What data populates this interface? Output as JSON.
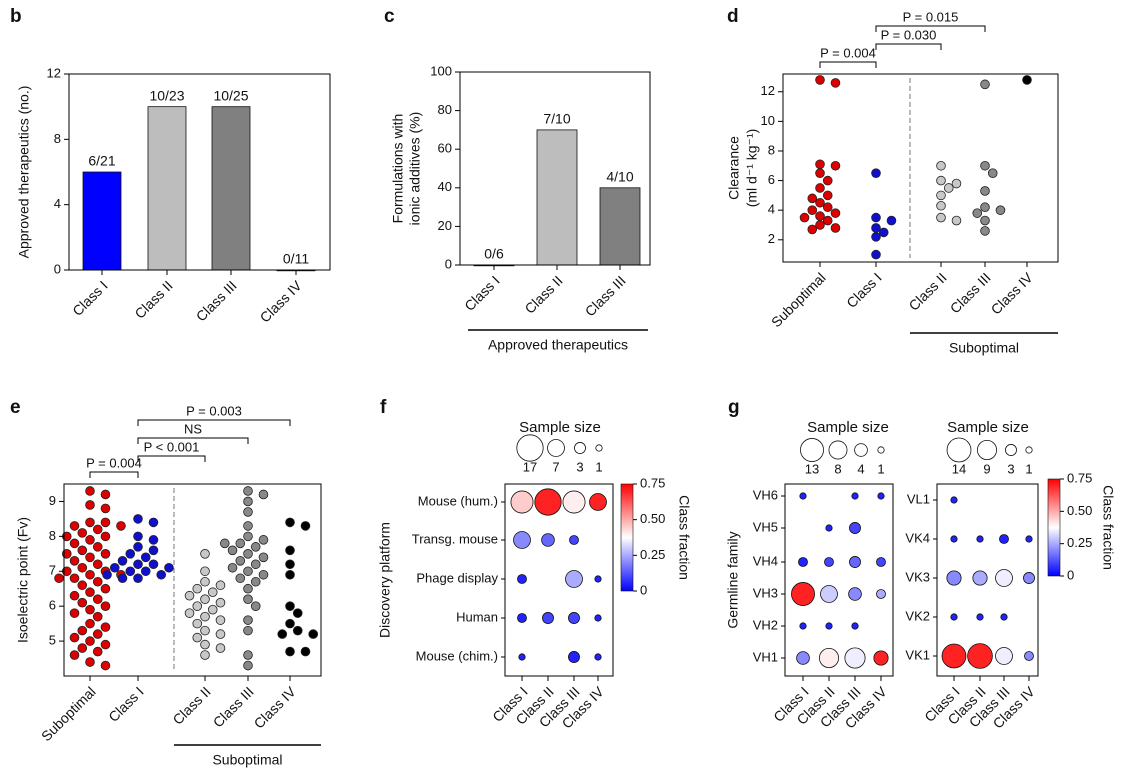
{
  "chart_data": [
    {
      "type": "bar",
      "panel_label": "b",
      "ylabel": [
        "Approved therapeutics (no.)"
      ],
      "categories": [
        "Class I",
        "Class II",
        "Class III",
        "Class IV"
      ],
      "values": [
        6,
        10,
        10,
        0
      ],
      "value_labels": [
        "6/21",
        "10/23",
        "10/25",
        "0/11"
      ],
      "colors": [
        "#0000ff",
        "#bdbdbd",
        "#808080",
        "#404040"
      ],
      "ylim": [
        0,
        12
      ],
      "yticks": [
        0,
        4,
        8,
        12
      ]
    },
    {
      "type": "bar",
      "panel_label": "c",
      "ylabel": [
        "Formulations with",
        "ionic additives (%)"
      ],
      "categories": [
        "Class I",
        "Class II",
        "Class III"
      ],
      "values": [
        0,
        70,
        40
      ],
      "value_labels": [
        "0/6",
        "7/10",
        "4/10"
      ],
      "colors": [
        "#0000ff",
        "#bdbdbd",
        "#808080"
      ],
      "ylim": [
        0,
        100
      ],
      "yticks": [
        0,
        20,
        40,
        60,
        80,
        100
      ],
      "group_label": "Approved therapeutics"
    },
    {
      "type": "strip",
      "panel_label": "d",
      "ylabel": [
        "Clearance",
        "(ml d⁻¹ kg⁻¹)"
      ],
      "categories": [
        "Suboptimal",
        "Class I",
        "Class II",
        "Class III",
        "Class IV"
      ],
      "colors": [
        "#dd0000",
        "#1010cc",
        "#c8c8c8",
        "#888888",
        "#000000"
      ],
      "values": [
        [
          12.8,
          12.6,
          7.1,
          7.0,
          6.5,
          6.0,
          5.5,
          5.0,
          4.8,
          4.5,
          4.2,
          4.0,
          3.8,
          3.6,
          3.5,
          3.3,
          3.0,
          2.8,
          2.7
        ],
        [
          6.5,
          3.5,
          3.3,
          2.8,
          2.5,
          2.2,
          1.0
        ],
        [
          7.0,
          6.0,
          5.8,
          5.5,
          5.0,
          4.3,
          3.5,
          3.3
        ],
        [
          12.5,
          7.0,
          6.5,
          5.3,
          4.2,
          4.0,
          3.8,
          3.3,
          2.6
        ],
        [
          12.8
        ]
      ],
      "ylim": [
        0.5,
        13.2
      ],
      "yticks": [
        2,
        4,
        6,
        8,
        10,
        12
      ],
      "annotations": [
        "P = 0.004",
        "P = 0.030",
        "P = 0.015"
      ],
      "group_label": "Suboptimal"
    },
    {
      "type": "strip",
      "panel_label": "e",
      "ylabel": [
        "Isoelectric point (Fv)"
      ],
      "categories": [
        "Suboptimal",
        "Class I",
        "Class II",
        "Class III",
        "Class IV"
      ],
      "colors": [
        "#dd0000",
        "#1010cc",
        "#c8c8c8",
        "#888888",
        "#000000"
      ],
      "values": [
        [
          9.3,
          9.2,
          8.9,
          8.8,
          8.4,
          8.4,
          8.3,
          8.3,
          8.2,
          8.1,
          8.0,
          8.0,
          7.9,
          7.8,
          7.7,
          7.6,
          7.5,
          7.5,
          7.4,
          7.3,
          7.2,
          7.1,
          7.0,
          7.0,
          6.9,
          6.9,
          6.8,
          6.8,
          6.7,
          6.6,
          6.5,
          6.4,
          6.3,
          6.2,
          6.1,
          6.0,
          5.9,
          5.8,
          5.7,
          5.5,
          5.4,
          5.3,
          5.2,
          5.1,
          5.0,
          4.9,
          4.8,
          4.7,
          4.6,
          4.4,
          4.3
        ],
        [
          8.5,
          8.4,
          8.0,
          7.9,
          7.7,
          7.6,
          7.5,
          7.4,
          7.3,
          7.2,
          7.2,
          7.1,
          7.1,
          7.0,
          7.0,
          6.9,
          6.9,
          6.8,
          6.8
        ],
        [
          7.5,
          7.0,
          6.7,
          6.6,
          6.5,
          6.4,
          6.3,
          6.2,
          6.1,
          6.0,
          5.9,
          5.8,
          5.7,
          5.6,
          5.5,
          5.3,
          5.2,
          5.1,
          4.9,
          4.8,
          4.6
        ],
        [
          9.3,
          9.2,
          9.0,
          8.7,
          8.3,
          8.0,
          7.9,
          7.8,
          7.8,
          7.7,
          7.6,
          7.5,
          7.4,
          7.3,
          7.2,
          7.1,
          7.0,
          6.9,
          6.8,
          6.7,
          6.5,
          6.2,
          6.0,
          5.6,
          5.3,
          4.6,
          4.3
        ],
        [
          8.4,
          8.3,
          7.6,
          7.2,
          6.9,
          6.0,
          5.8,
          5.5,
          5.3,
          5.2,
          5.2,
          4.7,
          4.7
        ]
      ],
      "ylim": [
        4.0,
        9.5
      ],
      "yticks": [
        5,
        6,
        7,
        8,
        9
      ],
      "annotations": [
        "P = 0.004",
        "P < 0.001",
        "NS",
        "P = 0.003"
      ],
      "group_label": "Suboptimal"
    },
    {
      "type": "bubble",
      "panel_label": "f",
      "ylabel": "Discovery platform",
      "rows": [
        "Mouse (hum.)",
        "Transg. mouse",
        "Phage display",
        "Human",
        "Mouse (chim.)"
      ],
      "columns": [
        "Class I",
        "Class II",
        "Class III",
        "Class IV"
      ],
      "sizes": [
        [
          12,
          17,
          12,
          7
        ],
        [
          7,
          4,
          2,
          null
        ],
        [
          2,
          null,
          7,
          1
        ],
        [
          2,
          3,
          3,
          1
        ],
        [
          1,
          null,
          3,
          1
        ]
      ],
      "fractions": [
        [
          0.45,
          0.7,
          0.4,
          0.7
        ],
        [
          0.2,
          0.15,
          0.1,
          null
        ],
        [
          0.05,
          null,
          0.25,
          0.05
        ],
        [
          0.05,
          0.1,
          0.1,
          0.05
        ],
        [
          0.05,
          null,
          0.05,
          0.05
        ]
      ],
      "size_legend_title": "Sample size",
      "size_legend": [
        17,
        7,
        3,
        1
      ],
      "colormap": [
        "#0000ff",
        "#ffffff",
        "#ff0000"
      ],
      "clim": [
        0,
        0.75
      ],
      "colorbar": true,
      "cticks": [
        0,
        0.25,
        {
          "value": 0.5,
          "label": "0.50"
        },
        0.75
      ],
      "colorbar_label": "Class fraction"
    },
    {
      "type": "bubble",
      "panel_label": "g",
      "ylabel": "Germline family",
      "rows": [
        "VH6",
        "VH5",
        "VH4",
        "VH3",
        "VH2",
        "VH1"
      ],
      "columns": [
        "Class I",
        "Class II",
        "Class III",
        "Class IV"
      ],
      "sizes": [
        [
          1,
          null,
          1,
          1
        ],
        [
          null,
          1,
          3,
          null
        ],
        [
          2,
          2,
          3,
          2
        ],
        [
          13,
          7,
          4,
          2
        ],
        [
          1,
          1,
          1,
          null
        ],
        [
          4,
          9,
          10,
          5
        ]
      ],
      "fractions": [
        [
          0.05,
          null,
          0.05,
          0.05
        ],
        [
          null,
          0.05,
          0.1,
          null
        ],
        [
          0.05,
          0.1,
          0.15,
          0.1
        ],
        [
          0.7,
          0.3,
          0.2,
          0.25
        ],
        [
          0.05,
          0.05,
          0.05,
          null
        ],
        [
          0.2,
          0.4,
          0.35,
          0.7
        ]
      ],
      "size_legend_title": "Sample size",
      "size_legend": [
        13,
        8,
        4,
        1
      ],
      "colormap": [
        "#0000ff",
        "#ffffff",
        "#ff0000"
      ],
      "clim": [
        0,
        0.75
      ],
      "colorbar": false
    },
    {
      "type": "bubble",
      "rows": [
        "VL1",
        "VK4",
        "VK3",
        "VK2",
        "VK1"
      ],
      "columns": [
        "Class I",
        "Class II",
        "Class III",
        "Class IV"
      ],
      "sizes": [
        [
          1,
          null,
          null,
          null
        ],
        [
          1,
          1,
          2,
          1
        ],
        [
          5,
          5,
          7,
          3
        ],
        [
          1,
          1,
          1,
          null
        ],
        [
          14,
          15,
          7,
          2
        ]
      ],
      "fractions": [
        [
          0.05,
          null,
          null,
          null
        ],
        [
          0.05,
          0.05,
          0.05,
          0.05
        ],
        [
          0.2,
          0.25,
          0.35,
          0.2
        ],
        [
          0.05,
          0.05,
          0.05,
          null
        ],
        [
          0.7,
          0.7,
          0.35,
          0.2
        ]
      ],
      "size_legend_title": "Sample size",
      "size_legend": [
        14,
        9,
        3,
        1
      ],
      "colormap": [
        "#0000ff",
        "#ffffff",
        "#ff0000"
      ],
      "clim": [
        0,
        0.75
      ],
      "colorbar": true,
      "cticks": [
        0,
        0.25,
        {
          "value": 0.5,
          "label": "0.50"
        },
        0.75
      ],
      "colorbar_label": "Class fraction"
    }
  ]
}
